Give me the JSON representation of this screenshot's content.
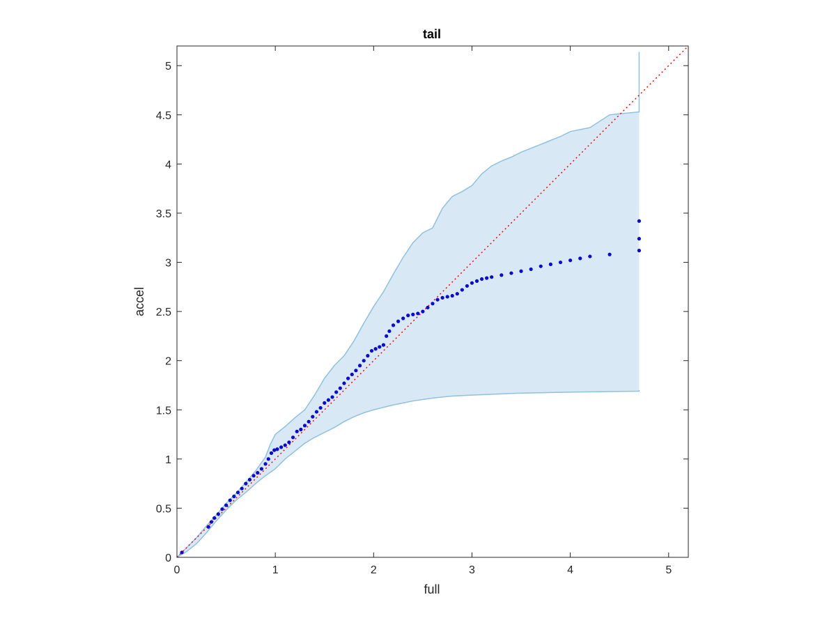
{
  "chart_data": {
    "type": "scatter",
    "title": "tail",
    "xlabel": "full",
    "ylabel": "accel",
    "xlim": [
      0,
      5.2
    ],
    "ylim": [
      0,
      5.2
    ],
    "xticks": [
      0,
      1,
      2,
      3,
      4,
      5
    ],
    "yticks": [
      0,
      0.5,
      1,
      1.5,
      2,
      2.5,
      3,
      3.5,
      4,
      4.5,
      5
    ],
    "grid": false,
    "colors": {
      "band_fill": "#d8e8f4",
      "band_edge": "#8fc1e0",
      "points": "#0a0ad6",
      "reference": "#ff0000",
      "axis": "#262626"
    },
    "reference_line": {
      "from": [
        0,
        0
      ],
      "to": [
        5.2,
        5.2
      ],
      "style": "dotted"
    },
    "band": {
      "upper": [
        [
          0,
          0
        ],
        [
          0.1,
          0.1
        ],
        [
          0.2,
          0.2
        ],
        [
          0.3,
          0.32
        ],
        [
          0.4,
          0.43
        ],
        [
          0.5,
          0.55
        ],
        [
          0.6,
          0.65
        ],
        [
          0.7,
          0.76
        ],
        [
          0.8,
          0.88
        ],
        [
          0.9,
          1.02
        ],
        [
          0.95,
          1.15
        ],
        [
          1.0,
          1.25
        ],
        [
          1.1,
          1.33
        ],
        [
          1.2,
          1.42
        ],
        [
          1.3,
          1.5
        ],
        [
          1.4,
          1.65
        ],
        [
          1.5,
          1.82
        ],
        [
          1.6,
          1.95
        ],
        [
          1.7,
          2.05
        ],
        [
          1.8,
          2.2
        ],
        [
          1.9,
          2.38
        ],
        [
          2.0,
          2.55
        ],
        [
          2.1,
          2.7
        ],
        [
          2.2,
          2.88
        ],
        [
          2.3,
          3.05
        ],
        [
          2.4,
          3.2
        ],
        [
          2.5,
          3.3
        ],
        [
          2.6,
          3.35
        ],
        [
          2.7,
          3.55
        ],
        [
          2.8,
          3.67
        ],
        [
          2.9,
          3.72
        ],
        [
          3.0,
          3.78
        ],
        [
          3.1,
          3.9
        ],
        [
          3.2,
          3.98
        ],
        [
          3.3,
          4.03
        ],
        [
          3.4,
          4.07
        ],
        [
          3.5,
          4.12
        ],
        [
          3.6,
          4.16
        ],
        [
          3.7,
          4.2
        ],
        [
          3.8,
          4.24
        ],
        [
          3.9,
          4.28
        ],
        [
          4.0,
          4.33
        ],
        [
          4.2,
          4.37
        ],
        [
          4.4,
          4.5
        ],
        [
          4.7,
          4.53
        ],
        [
          4.7,
          5.14
        ]
      ],
      "lower": [
        [
          0,
          0
        ],
        [
          0.1,
          0.06
        ],
        [
          0.2,
          0.14
        ],
        [
          0.3,
          0.25
        ],
        [
          0.4,
          0.37
        ],
        [
          0.5,
          0.48
        ],
        [
          0.6,
          0.58
        ],
        [
          0.7,
          0.66
        ],
        [
          0.8,
          0.75
        ],
        [
          0.9,
          0.83
        ],
        [
          1.0,
          0.9
        ],
        [
          1.1,
          1.0
        ],
        [
          1.2,
          1.08
        ],
        [
          1.3,
          1.16
        ],
        [
          1.4,
          1.22
        ],
        [
          1.5,
          1.27
        ],
        [
          1.6,
          1.32
        ],
        [
          1.7,
          1.38
        ],
        [
          1.8,
          1.43
        ],
        [
          1.9,
          1.47
        ],
        [
          2.0,
          1.5
        ],
        [
          2.2,
          1.55
        ],
        [
          2.4,
          1.59
        ],
        [
          2.6,
          1.62
        ],
        [
          2.8,
          1.64
        ],
        [
          3.0,
          1.65
        ],
        [
          3.5,
          1.67
        ],
        [
          4.0,
          1.68
        ],
        [
          4.7,
          1.69
        ],
        [
          4.7,
          1.7
        ]
      ]
    },
    "series": [
      {
        "x": [
          0.05,
          0.32,
          0.35,
          0.38,
          0.42,
          0.46,
          0.5,
          0.54,
          0.58,
          0.62,
          0.66,
          0.7,
          0.74,
          0.78,
          0.82,
          0.86,
          0.9,
          0.93,
          0.96,
          0.99,
          1.02,
          1.06,
          1.1,
          1.14,
          1.18,
          1.22,
          1.26,
          1.3,
          1.34,
          1.38,
          1.42,
          1.46,
          1.5,
          1.54,
          1.58,
          1.62,
          1.66,
          1.7,
          1.74,
          1.78,
          1.82,
          1.86,
          1.9,
          1.94,
          1.98,
          2.02,
          2.06,
          2.1,
          2.13,
          2.16,
          2.2,
          2.25,
          2.3,
          2.35,
          2.4,
          2.45,
          2.5,
          2.55,
          2.6,
          2.65,
          2.7,
          2.75,
          2.8,
          2.85,
          2.9,
          2.95,
          3.0,
          3.05,
          3.1,
          3.15,
          3.2,
          3.3,
          3.4,
          3.5,
          3.6,
          3.7,
          3.8,
          3.9,
          4.0,
          4.1,
          4.2,
          4.4,
          4.7,
          4.7,
          4.7
        ],
        "y": [
          0.05,
          0.31,
          0.36,
          0.4,
          0.44,
          0.49,
          0.53,
          0.58,
          0.62,
          0.66,
          0.7,
          0.75,
          0.79,
          0.83,
          0.86,
          0.9,
          0.95,
          1.0,
          1.06,
          1.09,
          1.1,
          1.12,
          1.14,
          1.17,
          1.22,
          1.28,
          1.3,
          1.34,
          1.38,
          1.43,
          1.48,
          1.52,
          1.57,
          1.6,
          1.63,
          1.68,
          1.72,
          1.77,
          1.82,
          1.86,
          1.9,
          1.95,
          2.0,
          2.05,
          2.1,
          2.12,
          2.14,
          2.16,
          2.25,
          2.3,
          2.36,
          2.4,
          2.43,
          2.46,
          2.47,
          2.48,
          2.5,
          2.54,
          2.58,
          2.62,
          2.64,
          2.65,
          2.66,
          2.68,
          2.72,
          2.76,
          2.79,
          2.81,
          2.83,
          2.84,
          2.85,
          2.87,
          2.89,
          2.91,
          2.93,
          2.96,
          2.98,
          3.0,
          3.02,
          3.04,
          3.06,
          3.08,
          3.12,
          3.24,
          3.42
        ]
      }
    ]
  }
}
